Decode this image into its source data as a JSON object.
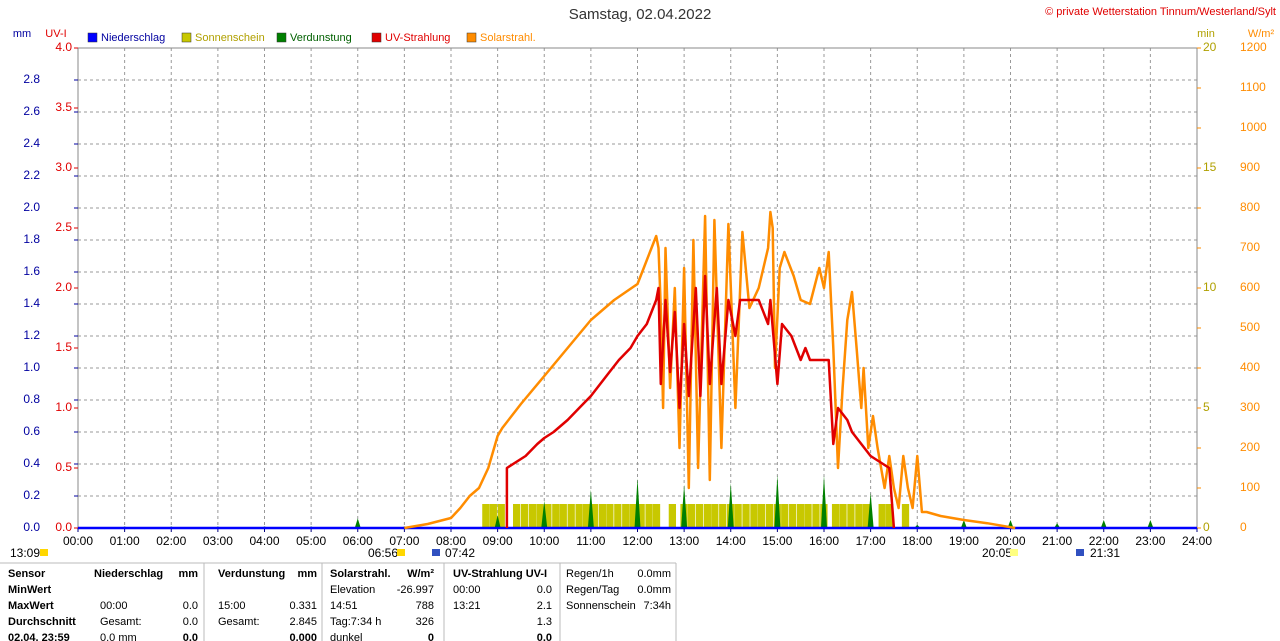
{
  "chart_data": {
    "type": "line",
    "title": "Samstag, 02.04.2022",
    "copyright": "© private Wetterstation Tinnum/Westerland/Sylt",
    "ylabel": "mm",
    "y2label": "UV-I",
    "y3label": "min",
    "y4label": "W/m²",
    "xlim": [
      0,
      24
    ],
    "xticks": [
      {
        "value": 0,
        "label": "00:00"
      },
      {
        "value": 1,
        "label": "01:00"
      },
      {
        "value": 2,
        "label": "02:00"
      },
      {
        "value": 3,
        "label": "03:00"
      },
      {
        "value": 4,
        "label": "04:00"
      },
      {
        "value": 5,
        "label": "05:00"
      },
      {
        "value": 6,
        "label": "06:00"
      },
      {
        "value": 7,
        "label": "07:00"
      },
      {
        "value": 8,
        "label": "08:00"
      },
      {
        "value": 9,
        "label": "09:00"
      },
      {
        "value": 10,
        "label": "10:00"
      },
      {
        "value": 11,
        "label": "11:00"
      },
      {
        "value": 12,
        "label": "12:00"
      },
      {
        "value": 13,
        "label": "13:00"
      },
      {
        "value": 14,
        "label": "14:00"
      },
      {
        "value": 15,
        "label": "15:00"
      },
      {
        "value": 16,
        "label": "16:00"
      },
      {
        "value": 17,
        "label": "17:00"
      },
      {
        "value": 18,
        "label": "18:00"
      },
      {
        "value": 19,
        "label": "19:00"
      },
      {
        "value": 20,
        "label": "20:00"
      },
      {
        "value": 21,
        "label": "21:00"
      },
      {
        "value": 22,
        "label": "22:00"
      },
      {
        "value": 23,
        "label": "23:00"
      },
      {
        "value": 24,
        "label": "24:00"
      }
    ],
    "ylim": [
      0,
      3.0
    ],
    "yticks": [
      {
        "value": 0,
        "label": "0.0"
      },
      0.2,
      0.4,
      0.6,
      0.8,
      {
        "value": 1,
        "label": "1.0"
      },
      1.2,
      1.4,
      1.6,
      1.8,
      {
        "value": 2,
        "label": "2.0"
      },
      2.2,
      2.4,
      2.6,
      2.8
    ],
    "y2lim": [
      0,
      4
    ],
    "y2ticks": [
      {
        "value": 0,
        "label": "0.0"
      },
      0.5,
      {
        "value": 1,
        "label": "1.0"
      },
      1.5,
      {
        "value": 2,
        "label": "2.0"
      },
      2.5,
      {
        "value": 3,
        "label": "3.0"
      },
      3.5,
      {
        "value": 4,
        "label": "4.0"
      }
    ],
    "y3lim": [
      0,
      20
    ],
    "y3ticks": [
      0,
      5,
      10,
      15,
      20
    ],
    "y4lim": [
      0,
      1200
    ],
    "y4ticks": [
      0,
      100,
      200,
      300,
      400,
      500,
      600,
      700,
      800,
      900,
      1000,
      1100,
      1200
    ],
    "grid": true,
    "series": [
      {
        "name": "Niederschlag",
        "color": "#0000ff",
        "axis": "y",
        "kind": "line",
        "x": [
          0,
          24
        ],
        "values": [
          0,
          0
        ]
      },
      {
        "name": "Sonnenschein",
        "color": "#c8c800",
        "axis": "y3",
        "kind": "bar",
        "x": [
          8.67,
          8.83,
          9.0,
          9.33,
          9.5,
          9.67,
          9.83,
          10.0,
          10.17,
          10.33,
          10.5,
          10.67,
          10.83,
          11.0,
          11.17,
          11.33,
          11.5,
          11.67,
          11.83,
          12.0,
          12.17,
          12.33,
          12.67,
          12.92,
          13.08,
          13.25,
          13.42,
          13.58,
          13.75,
          13.92,
          14.08,
          14.25,
          14.42,
          14.58,
          14.75,
          14.92,
          15.08,
          15.25,
          15.42,
          15.58,
          15.75,
          15.92,
          16.17,
          16.33,
          16.5,
          16.67,
          16.83,
          17.17,
          17.33,
          17.67
        ],
        "values": [
          1,
          1,
          1,
          1,
          1,
          1,
          1,
          1,
          1,
          1,
          1,
          1,
          1,
          1,
          1,
          1,
          1,
          1,
          1,
          1,
          1,
          1,
          1,
          1,
          1,
          1,
          1,
          1,
          1,
          1,
          1,
          1,
          1,
          1,
          1,
          1,
          1,
          1,
          1,
          1,
          1,
          1,
          1,
          1,
          1,
          1,
          1,
          1,
          1,
          1
        ]
      },
      {
        "name": "Verdunstung",
        "color": "#008000",
        "axis": "y",
        "kind": "spike",
        "x": [
          1,
          2,
          3,
          4,
          5,
          6,
          7,
          8,
          9,
          10,
          11,
          12,
          13,
          14,
          15,
          16,
          17,
          18,
          19,
          20,
          21,
          22,
          23
        ],
        "values": [
          0.01,
          0.01,
          0.01,
          0.01,
          0.01,
          0.06,
          0.01,
          0.01,
          0.08,
          0.17,
          0.24,
          0.31,
          0.27,
          0.28,
          0.331,
          0.33,
          0.22,
          0.02,
          0.05,
          0.05,
          0.03,
          0.05,
          0.05
        ]
      },
      {
        "name": "Solarstrahl.",
        "color": "#ff8c00",
        "axis": "y4",
        "kind": "line",
        "x": [
          7.0,
          7.5,
          8.0,
          8.2,
          8.4,
          8.6,
          8.8,
          9.0,
          9.1,
          9.5,
          10.0,
          10.5,
          11.0,
          11.5,
          12.0,
          12.1,
          12.3,
          12.4,
          12.45,
          12.5,
          12.55,
          12.6,
          12.7,
          12.8,
          12.9,
          13.0,
          13.1,
          13.2,
          13.3,
          13.45,
          13.55,
          13.65,
          13.8,
          13.95,
          14.1,
          14.25,
          14.4,
          14.6,
          14.8,
          14.85,
          14.9,
          14.95,
          15.05,
          15.15,
          15.35,
          15.5,
          15.7,
          15.9,
          16.0,
          16.1,
          16.2,
          16.3,
          16.4,
          16.5,
          16.6,
          16.7,
          16.8,
          16.85,
          16.95,
          17.05,
          17.15,
          17.3,
          17.4,
          17.5,
          17.6,
          17.7,
          17.8,
          17.9,
          18.0,
          18.1,
          18.2,
          18.5,
          19.0,
          19.5,
          20.0,
          20.1
        ],
        "values": [
          0,
          10,
          25,
          50,
          80,
          100,
          150,
          230,
          250,
          310,
          380,
          450,
          520,
          570,
          610,
          640,
          700,
          730,
          700,
          550,
          300,
          700,
          350,
          600,
          200,
          650,
          100,
          720,
          150,
          780,
          120,
          770,
          200,
          760,
          300,
          740,
          550,
          600,
          700,
          790,
          750,
          400,
          650,
          690,
          630,
          570,
          560,
          650,
          600,
          690,
          450,
          150,
          350,
          520,
          590,
          450,
          300,
          400,
          200,
          280,
          200,
          100,
          180,
          100,
          50,
          180,
          100,
          50,
          180,
          40,
          40,
          30,
          20,
          12,
          2,
          0
        ]
      },
      {
        "name": "UV-Strahlung",
        "color": "#e00000",
        "axis": "y2",
        "kind": "line",
        "x": [
          9.2,
          9.2,
          9.6,
          9.85,
          10.0,
          10.2,
          10.5,
          10.75,
          11.0,
          11.2,
          11.4,
          11.6,
          11.85,
          12.0,
          12.2,
          12.4,
          12.45,
          12.5,
          12.6,
          12.7,
          12.8,
          12.9,
          13.0,
          13.1,
          13.25,
          13.35,
          13.45,
          13.55,
          13.7,
          13.8,
          13.95,
          14.1,
          14.2,
          14.6,
          14.8,
          14.85,
          15.0,
          15.1,
          15.3,
          15.5,
          15.6,
          15.7,
          16.1,
          16.2,
          16.3,
          16.5,
          16.6,
          16.8,
          17.0,
          17.4,
          17.5
        ],
        "values": [
          0,
          0.5,
          0.6,
          0.7,
          0.75,
          0.8,
          0.9,
          1.0,
          1.1,
          1.2,
          1.3,
          1.4,
          1.5,
          1.6,
          1.7,
          1.9,
          2.0,
          1.2,
          1.9,
          1.3,
          1.8,
          1.0,
          1.7,
          1.1,
          2.0,
          1.1,
          2.1,
          1.2,
          2.0,
          1.2,
          1.9,
          1.6,
          1.9,
          1.9,
          1.7,
          1.9,
          1.2,
          1.7,
          1.6,
          1.4,
          1.5,
          1.4,
          1.4,
          0.7,
          1.0,
          0.9,
          0.8,
          0.7,
          0.6,
          0.5,
          0
        ]
      }
    ],
    "legend_order": [
      0,
      1,
      2,
      4,
      3
    ],
    "annotations": [
      "13:09",
      "06:56",
      "07:42",
      "20:05",
      "21:31"
    ]
  },
  "table": {
    "rows": [
      [
        "Sensor",
        "Niederschlag",
        "mm",
        "Verdunstung",
        "mm",
        "Solarstrahl.",
        "W/m²",
        "UV-Strahlung UV-I",
        null,
        "Regen/1h",
        "0.0mm"
      ],
      [
        "MinWert",
        null,
        null,
        null,
        null,
        "Elevation",
        "-26.997",
        "00:00",
        "0.0",
        "Regen/Tag",
        "0.0mm"
      ],
      [
        "MaxWert",
        "00:00",
        "0.0",
        "15:00",
        "0.331",
        "14:51",
        "788",
        "13:21",
        "2.1",
        "Sonnenschein",
        "7:34h"
      ],
      [
        "Durchschnitt",
        "Gesamt:",
        "0.0",
        "Gesamt:",
        "2.845",
        "Tag:7:34 h",
        "326",
        null,
        "1.3",
        null,
        null
      ],
      [
        "02.04. 23:59",
        "0.0 mm",
        "0.0",
        null,
        "0.000",
        "dunkel",
        "0",
        null,
        "0.0",
        null,
        null
      ]
    ]
  }
}
